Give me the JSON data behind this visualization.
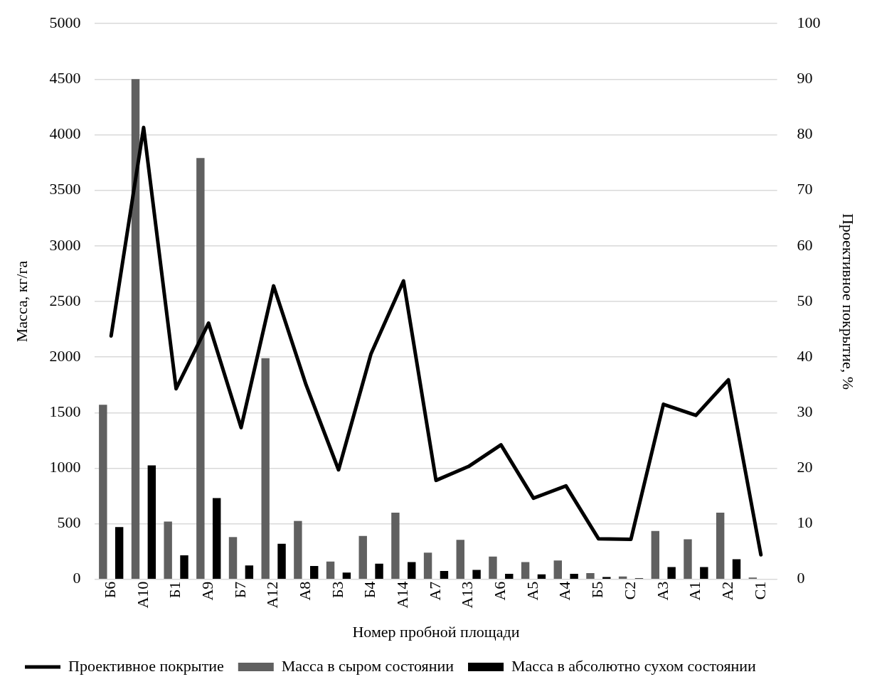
{
  "chart_data": {
    "type": "bar",
    "xlabel": "Номер пробной площади",
    "ylabel": "Масса, кг/га",
    "y2label": "Проективное покрытие, %",
    "categories": [
      "Б6",
      "А10",
      "Б1",
      "А9",
      "Б7",
      "А12",
      "А8",
      "Б3",
      "Б4",
      "А14",
      "А7",
      "А13",
      "А6",
      "А5",
      "А4",
      "Б5",
      "С2",
      "А3",
      "А1",
      "А2",
      "С1"
    ],
    "series": [
      {
        "name": "Масса в сыром состоянии",
        "color": "#606060",
        "values": [
          1570,
          4500,
          520,
          3790,
          380,
          1990,
          525,
          160,
          390,
          600,
          240,
          355,
          205,
          155,
          170,
          55,
          25,
          435,
          360,
          600,
          15
        ]
      },
      {
        "name": "Масса в абсолютно сухом состоянии",
        "color": "#000000",
        "values": [
          470,
          1025,
          215,
          730,
          125,
          320,
          120,
          60,
          140,
          155,
          75,
          85,
          50,
          45,
          50,
          20,
          10,
          110,
          110,
          180,
          5
        ]
      },
      {
        "name": "Проективное покрытие",
        "type": "line",
        "axis": "y2",
        "color": "#000000",
        "values": [
          43.8,
          81.3,
          34.3,
          46.1,
          27.3,
          52.8,
          35.0,
          19.7,
          40.6,
          53.7,
          17.8,
          20.3,
          24.2,
          14.6,
          16.8,
          7.3,
          7.2,
          31.5,
          29.5,
          35.9,
          4.4
        ]
      }
    ],
    "ylim": [
      0,
      5000
    ],
    "yticks": [
      0,
      500,
      1000,
      1500,
      2000,
      2500,
      3000,
      3500,
      4000,
      4500,
      5000
    ],
    "y2lim": [
      0,
      100
    ],
    "y2ticks": [
      0,
      10,
      20,
      30,
      40,
      50,
      60,
      70,
      80,
      90,
      100
    ],
    "grid": "y",
    "legend": "bottom",
    "marker": "none",
    "line_style": "solid"
  }
}
